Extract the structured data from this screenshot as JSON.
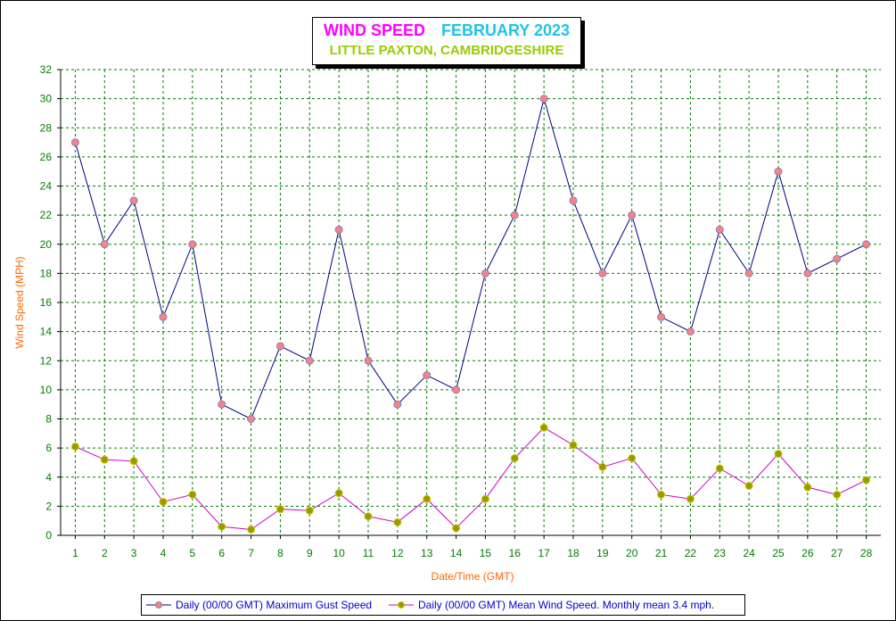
{
  "header": {
    "title": "WIND SPEED",
    "period": "FEBRUARY 2023",
    "subtitle": "LITTLE PAXTON, CAMBRIDGESHIRE"
  },
  "colors": {
    "title": "#ff00ff",
    "period": "#1fc4e6",
    "subtitle": "#99cc00",
    "axis_labels": "#ff6600",
    "ticks": "#008000",
    "grid": "#008000",
    "gust_line": "#000080",
    "gust_marker": "#ff8080",
    "mean_line": "#cc00cc",
    "mean_marker": "#999900",
    "legend_text": "#0000cc"
  },
  "chart_data": {
    "type": "line",
    "xlabel": "Date/Time (GMT)",
    "ylabel": "Wind Speed (MPH)",
    "x": [
      1,
      2,
      3,
      4,
      5,
      6,
      7,
      8,
      9,
      10,
      11,
      12,
      13,
      14,
      15,
      16,
      17,
      18,
      19,
      20,
      21,
      22,
      23,
      24,
      25,
      26,
      27,
      28
    ],
    "ylim": [
      0,
      32
    ],
    "yticks": [
      0,
      2,
      4,
      6,
      8,
      10,
      12,
      14,
      16,
      18,
      20,
      22,
      24,
      26,
      28,
      30,
      32
    ],
    "grid": true,
    "legend_position": "bottom",
    "series": [
      {
        "name": "Daily (00/00 GMT) Maximum Gust Speed",
        "values": [
          27,
          20,
          23,
          15,
          20,
          9,
          8,
          13,
          12,
          21,
          12,
          9,
          11,
          10,
          18,
          22,
          30,
          23,
          18,
          22,
          15,
          14,
          21,
          18,
          25,
          18,
          19,
          20
        ]
      },
      {
        "name": "Daily (00/00 GMT) Mean Wind Speed. Monthly mean 3.4 mph.",
        "values": [
          6.1,
          5.2,
          5.1,
          2.3,
          2.8,
          0.6,
          0.4,
          1.8,
          1.7,
          2.9,
          1.3,
          0.9,
          2.5,
          0.5,
          2.5,
          5.3,
          7.4,
          6.2,
          4.7,
          5.3,
          2.8,
          2.5,
          4.6,
          3.4,
          5.6,
          3.3,
          2.8,
          3.8
        ]
      }
    ]
  }
}
